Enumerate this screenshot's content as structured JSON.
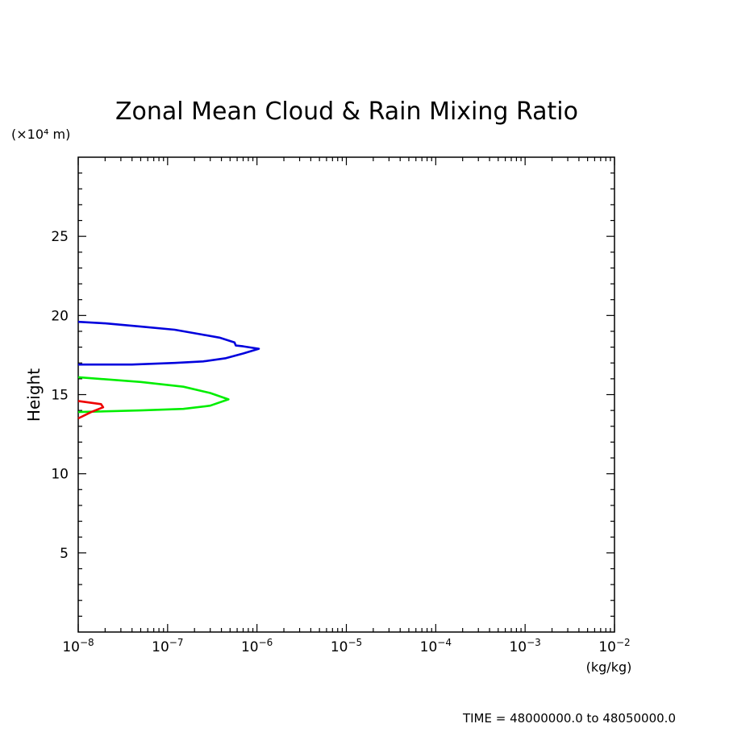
{
  "chart_data": {
    "type": "line",
    "title": "Zonal Mean Cloud & Rain Mixing Ratio",
    "ylabel": "Height",
    "y_unit": "(×10⁴ m)",
    "x_unit": "(kg/kg)",
    "x_scale": "log",
    "xlim": [
      1e-08,
      0.01
    ],
    "ylim": [
      0,
      30
    ],
    "x_major_ticks": [
      1e-08,
      1e-07,
      1e-06,
      1e-05,
      0.0001,
      0.001,
      0.01
    ],
    "x_tick_labels": [
      {
        "base": "10",
        "exp": "−8"
      },
      {
        "base": "10",
        "exp": "−7"
      },
      {
        "base": "10",
        "exp": "−6"
      },
      {
        "base": "10",
        "exp": "−5"
      },
      {
        "base": "10",
        "exp": "−4"
      },
      {
        "base": "10",
        "exp": "−3"
      },
      {
        "base": "10",
        "exp": "−2"
      }
    ],
    "y_major_ticks": [
      5,
      10,
      15,
      20,
      25
    ],
    "y_tick_labels": [
      "5",
      "10",
      "15",
      "20",
      "25"
    ],
    "grid": false,
    "series": [
      {
        "color": "#0000dd",
        "points": [
          [
            1e-08,
            19.6
          ],
          [
            2e-08,
            19.5
          ],
          [
            5e-08,
            19.3
          ],
          [
            1.2e-07,
            19.1
          ],
          [
            2.4e-07,
            18.8
          ],
          [
            3.8e-07,
            18.6
          ],
          [
            5.6e-07,
            18.3
          ],
          [
            5.8e-07,
            18.1
          ],
          [
            7e-07,
            18.05
          ],
          [
            1.05e-06,
            17.9
          ],
          [
            7e-07,
            17.6
          ],
          [
            4.5e-07,
            17.3
          ],
          [
            2.5e-07,
            17.1
          ],
          [
            1.2e-07,
            17.0
          ],
          [
            4e-08,
            16.9
          ],
          [
            1e-08,
            16.9
          ]
        ]
      },
      {
        "color": "#00ee00",
        "points": [
          [
            1e-08,
            16.1
          ],
          [
            5e-08,
            15.8
          ],
          [
            1.5e-07,
            15.5
          ],
          [
            3e-07,
            15.1
          ],
          [
            4.8e-07,
            14.7
          ],
          [
            3e-07,
            14.3
          ],
          [
            1.5e-07,
            14.1
          ],
          [
            5e-08,
            14.0
          ],
          [
            1e-08,
            13.9
          ]
        ]
      },
      {
        "color": "#ee0000",
        "points": [
          [
            1e-08,
            14.6
          ],
          [
            1.8e-08,
            14.4
          ],
          [
            1.9e-08,
            14.2
          ],
          [
            1.4e-08,
            13.9
          ],
          [
            1e-08,
            13.5
          ]
        ]
      }
    ]
  },
  "footer": "TIME = 48000000.0 to 48050000.0"
}
